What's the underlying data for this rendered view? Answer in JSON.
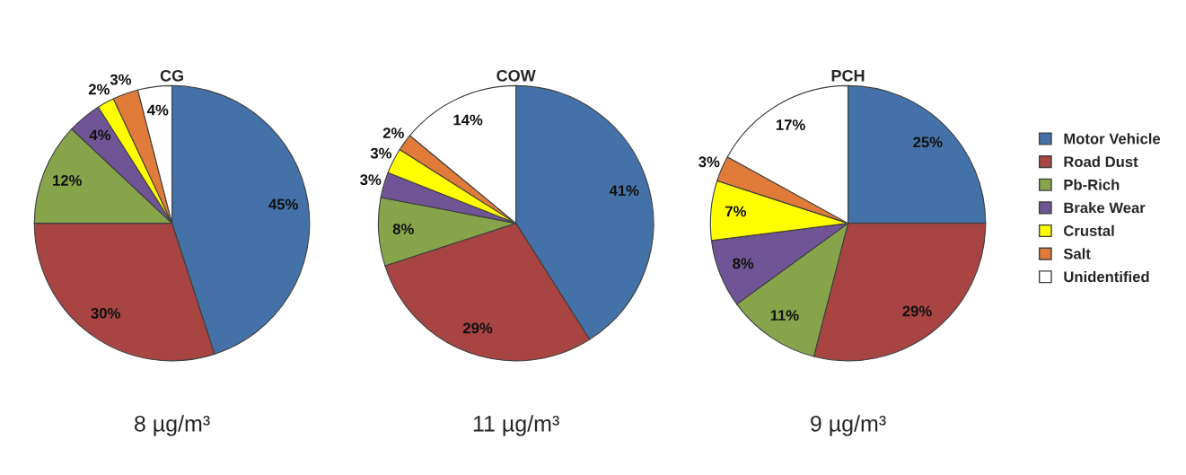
{
  "chart_data": [
    {
      "type": "pie",
      "title": "CG",
      "xlabel": "8 µg/m³",
      "categories": [
        "Motor Vehicle",
        "Road Dust",
        "Pb-Rich",
        "Brake Wear",
        "Crustal",
        "Salt",
        "Unidentified"
      ],
      "values": [
        45,
        30,
        12,
        4,
        2,
        3,
        4
      ],
      "value_labels": [
        "45%",
        "30%",
        "12%",
        "4%",
        "2%",
        "3%",
        "4%"
      ],
      "colors": [
        "#4472a8",
        "#a84442",
        "#88a44b",
        "#6f5595",
        "#ffff00",
        "#e07b39",
        "#ffffff"
      ],
      "legend": "right"
    },
    {
      "type": "pie",
      "title": "COW",
      "xlabel": "11 µg/m³",
      "categories": [
        null,
        null,
        null,
        null,
        null,
        null,
        null
      ],
      "values": [
        41,
        29,
        8,
        3,
        3,
        2,
        14
      ],
      "value_labels": [
        "41%",
        "29%",
        "8%",
        "3%",
        "3%",
        "2%",
        "14%"
      ],
      "colors": [
        "#4472a8",
        "#a84442",
        "#88a44b",
        "#6f5595",
        "#ffff00",
        "#e07b39",
        "#ffffff"
      ]
    },
    {
      "type": "pie",
      "title": "PCH",
      "xlabel": "9 µg/m³",
      "categories": [
        null,
        null,
        null,
        null,
        null,
        null,
        null
      ],
      "values": [
        25,
        29,
        11,
        8,
        7,
        3,
        17
      ],
      "value_labels": [
        "25%",
        "29%",
        "11%",
        "8%",
        "7%",
        "3%",
        "17%"
      ],
      "colors": [
        "#4472a8",
        "#a84442",
        "#88a44b",
        "#6f5595",
        "#ffff00",
        "#e07b39",
        "#ffffff"
      ]
    }
  ]
}
